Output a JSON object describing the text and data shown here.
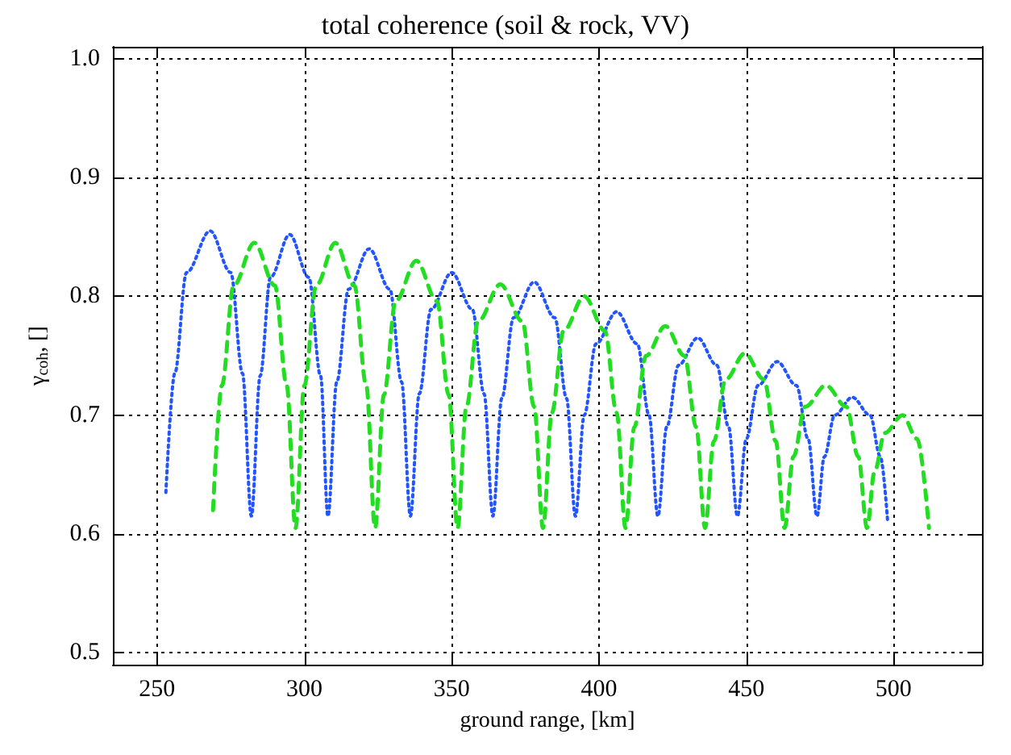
{
  "chart_data": {
    "type": "line",
    "title": "total coherence (soil & rock, VV)",
    "xlabel": "ground range, [km]",
    "ylabel": "γ$_{coh}$, []",
    "xlim": [
      235,
      530
    ],
    "xticks": [
      250,
      300,
      350,
      400,
      450,
      500
    ],
    "ylim": [
      0.49,
      1.01
    ],
    "yticks": [
      {
        "value": 0.5,
        "label": "0.5"
      },
      0.6,
      0.7,
      0.8,
      0.9,
      {
        "value": 1,
        "label": "1.0"
      }
    ],
    "grid": true,
    "marker": "none",
    "series": [
      {
        "color": "#2255ff",
        "line_style": "dotted",
        "x": [
          253,
          256,
          260,
          268,
          275,
          279,
          282,
          285,
          288.5,
          295,
          301.5,
          305.5,
          308,
          311,
          315,
          322,
          329,
          333,
          336,
          339,
          343,
          350,
          357,
          361,
          364,
          367,
          371,
          378,
          385,
          389,
          392,
          395,
          399,
          406,
          413,
          417,
          420,
          423,
          427,
          433.5,
          440,
          444,
          447,
          450,
          454,
          460.5,
          467,
          471,
          474,
          476.5,
          480,
          486,
          492,
          495.5,
          498
        ],
        "values": [
          0.635,
          0.735,
          0.82,
          0.855,
          0.82,
          0.735,
          0.615,
          0.733,
          0.816,
          0.852,
          0.816,
          0.733,
          0.615,
          0.728,
          0.806,
          0.84,
          0.806,
          0.728,
          0.615,
          0.718,
          0.789,
          0.82,
          0.789,
          0.718,
          0.615,
          0.714,
          0.782,
          0.812,
          0.782,
          0.714,
          0.615,
          0.7,
          0.76,
          0.787,
          0.76,
          0.7,
          0.615,
          0.69,
          0.742,
          0.765,
          0.742,
          0.69,
          0.615,
          0.68,
          0.725,
          0.745,
          0.725,
          0.68,
          0.615,
          0.665,
          0.7,
          0.715,
          0.7,
          0.665,
          0.61
        ]
      },
      {
        "color": "#22dd22",
        "line_style": "dashed",
        "x": [
          269,
          272,
          276,
          283,
          290,
          294,
          297,
          300,
          304,
          310.5,
          317,
          321,
          324,
          327,
          331,
          338,
          345,
          349,
          352,
          355,
          359,
          366.5,
          374,
          378,
          381,
          384,
          388,
          395,
          402,
          406,
          409,
          412,
          416,
          422.5,
          429,
          433,
          436,
          439,
          443,
          449.5,
          456,
          460,
          463,
          466,
          470,
          477,
          484,
          488,
          491,
          493.5,
          497,
          503,
          508,
          512
        ],
        "values": [
          0.62,
          0.725,
          0.809,
          0.845,
          0.809,
          0.725,
          0.605,
          0.725,
          0.809,
          0.845,
          0.809,
          0.725,
          0.605,
          0.717,
          0.796,
          0.83,
          0.796,
          0.717,
          0.605,
          0.707,
          0.779,
          0.81,
          0.779,
          0.707,
          0.605,
          0.702,
          0.771,
          0.8,
          0.771,
          0.702,
          0.605,
          0.69,
          0.75,
          0.775,
          0.75,
          0.69,
          0.605,
          0.678,
          0.73,
          0.752,
          0.73,
          0.678,
          0.605,
          0.665,
          0.707,
          0.725,
          0.707,
          0.665,
          0.605,
          0.652,
          0.685,
          0.7,
          0.68,
          0.605
        ]
      }
    ]
  }
}
